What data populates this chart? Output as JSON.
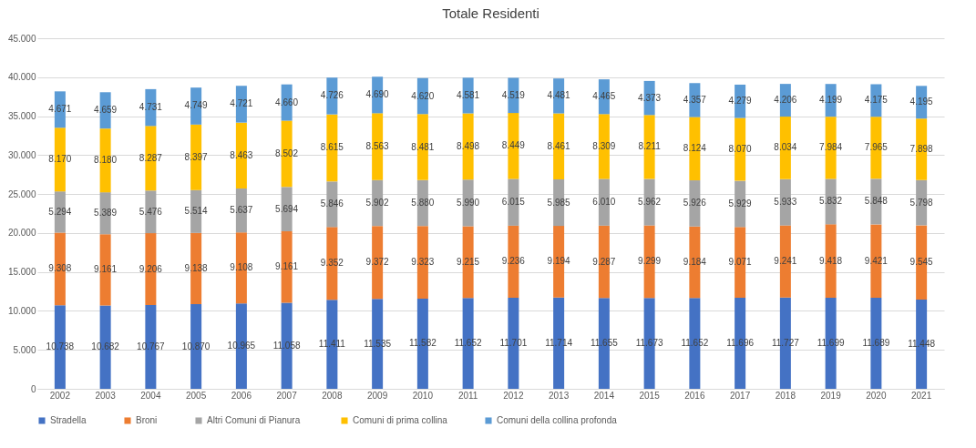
{
  "chart_data": {
    "type": "bar",
    "title": "Totale Residenti",
    "stacked": true,
    "grid": "y",
    "legend": "bottom",
    "categories": [
      "2002",
      "2003",
      "2004",
      "2005",
      "2006",
      "2007",
      "2008",
      "2009",
      "2010",
      "2011",
      "2012",
      "2013",
      "2014",
      "2015",
      "2016",
      "2017",
      "2018",
      "2019",
      "2020",
      "2021"
    ],
    "ylim": [
      0,
      45000
    ],
    "yticks": [
      {
        "value": 0,
        "label": "0"
      },
      {
        "value": 5000,
        "label": "5.000"
      },
      {
        "value": 10000,
        "label": "10.000"
      },
      {
        "value": 15000,
        "label": "15.000"
      },
      {
        "value": 20000,
        "label": "20.000"
      },
      {
        "value": 25000,
        "label": "25.000"
      },
      {
        "value": 30000,
        "label": "30.000"
      },
      {
        "value": 35000,
        "label": "35.000"
      },
      {
        "value": 40000,
        "label": "40.000"
      },
      {
        "value": 45000,
        "label": "45.000"
      }
    ],
    "series": [
      {
        "name": "Stradella",
        "color": "#4472c4",
        "values": [
          10738,
          10682,
          10767,
          10870,
          10965,
          11058,
          11411,
          11535,
          11582,
          11652,
          11701,
          11714,
          11655,
          11673,
          11652,
          11696,
          11727,
          11699,
          11689,
          11448
        ],
        "value_labels": [
          "10.738",
          "10.682",
          "10.767",
          "10.870",
          "10.965",
          "11.058",
          "11.411",
          "11.535",
          "11.582",
          "11.652",
          "11.701",
          "11.714",
          "11.655",
          "11.673",
          "11.652",
          "11.696",
          "11.727",
          "11.699",
          "11.689",
          "11.448"
        ]
      },
      {
        "name": "Broni",
        "color": "#ed7d31",
        "values": [
          9308,
          9161,
          9206,
          9138,
          9108,
          9161,
          9352,
          9372,
          9323,
          9215,
          9236,
          9194,
          9287,
          9299,
          9184,
          9071,
          9241,
          9418,
          9421,
          9545
        ],
        "value_labels": [
          "9.308",
          "9.161",
          "9.206",
          "9.138",
          "9.108",
          "9.161",
          "9.352",
          "9.372",
          "9.323",
          "9.215",
          "9.236",
          "9.194",
          "9.287",
          "9.299",
          "9.184",
          "9.071",
          "9.241",
          "9.418",
          "9.421",
          "9.545"
        ]
      },
      {
        "name": "Altri Comuni  di Pianura",
        "color": "#a5a5a5",
        "values": [
          5294,
          5389,
          5476,
          5514,
          5637,
          5694,
          5846,
          5902,
          5880,
          5990,
          6015,
          5985,
          6010,
          5962,
          5926,
          5929,
          5933,
          5832,
          5848,
          5798
        ],
        "value_labels": [
          "5.294",
          "5.389",
          "5.476",
          "5.514",
          "5.637",
          "5.694",
          "5.846",
          "5.902",
          "5.880",
          "5.990",
          "6.015",
          "5.985",
          "6.010",
          "5.962",
          "5.926",
          "5.929",
          "5.933",
          "5.832",
          "5.848",
          "5.798"
        ]
      },
      {
        "name": "Comuni di prima collina",
        "color": "#ffc000",
        "values": [
          8170,
          8180,
          8287,
          8397,
          8463,
          8502,
          8615,
          8563,
          8481,
          8498,
          8449,
          8461,
          8309,
          8211,
          8124,
          8070,
          8034,
          7984,
          7965,
          7898
        ],
        "value_labels": [
          "8.170",
          "8.180",
          "8.287",
          "8.397",
          "8.463",
          "8.502",
          "8.615",
          "8.563",
          "8.481",
          "8.498",
          "8.449",
          "8.461",
          "8.309",
          "8.211",
          "8.124",
          "8.070",
          "8.034",
          "7.984",
          "7.965",
          "7.898"
        ]
      },
      {
        "name": "Comuni della collina profonda",
        "color": "#5b9bd5",
        "values": [
          4671,
          4659,
          4731,
          4749,
          4721,
          4660,
          4726,
          4690,
          4620,
          4581,
          4519,
          4481,
          4465,
          4373,
          4357,
          4279,
          4206,
          4199,
          4175,
          4195
        ],
        "value_labels": [
          "4.671",
          "4.659",
          "4.731",
          "4.749",
          "4.721",
          "4.660",
          "4.726",
          "4.690",
          "4.620",
          "4.581",
          "4.519",
          "4.481",
          "4.465",
          "4.373",
          "4.357",
          "4.279",
          "4.206",
          "4.199",
          "4.175",
          "4.195"
        ]
      }
    ]
  }
}
